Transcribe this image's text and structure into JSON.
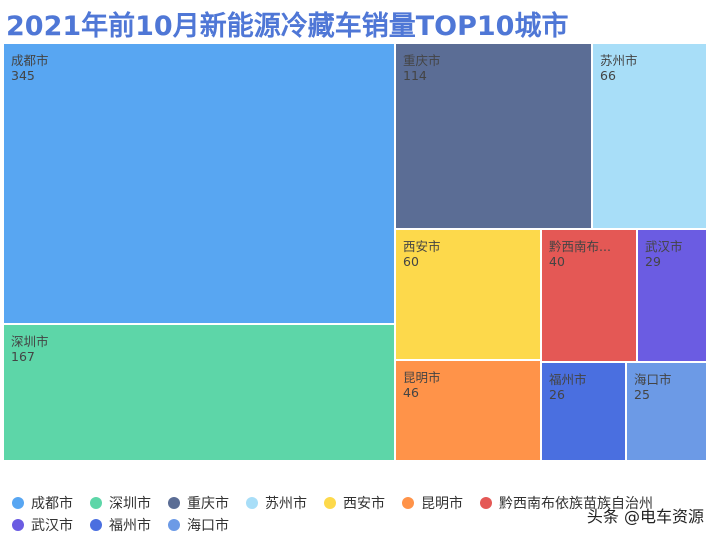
{
  "chart_data": {
    "type": "treemap",
    "title": "2021年前10月新能源冷藏车销量TOP10城市",
    "legend_position": "bottom",
    "items": [
      {
        "name": "成都市",
        "label": "成都市",
        "value": 345,
        "color": "#58a6f2"
      },
      {
        "name": "深圳市",
        "label": "深圳市",
        "value": 167,
        "color": "#5dd6a8"
      },
      {
        "name": "重庆市",
        "label": "重庆市",
        "value": 114,
        "color": "#5b6d95"
      },
      {
        "name": "苏州市",
        "label": "苏州市",
        "value": 66,
        "color": "#a8def8"
      },
      {
        "name": "西安市",
        "label": "西安市",
        "value": 60,
        "color": "#fdd94b"
      },
      {
        "name": "昆明市",
        "label": "昆明市",
        "value": 46,
        "color": "#ff9349"
      },
      {
        "name": "黔西南布依族苗族自治州",
        "label": "黔西南布...",
        "value": 40,
        "color": "#e45855"
      },
      {
        "name": "武汉市",
        "label": "武汉市",
        "value": 29,
        "color": "#6b5ce2"
      },
      {
        "name": "福州市",
        "label": "福州市",
        "value": 26,
        "color": "#4a6fe0"
      },
      {
        "name": "海口市",
        "label": "海口市",
        "value": 25,
        "color": "#6c9ae6"
      }
    ]
  },
  "watermark": "头条 @电车资源"
}
